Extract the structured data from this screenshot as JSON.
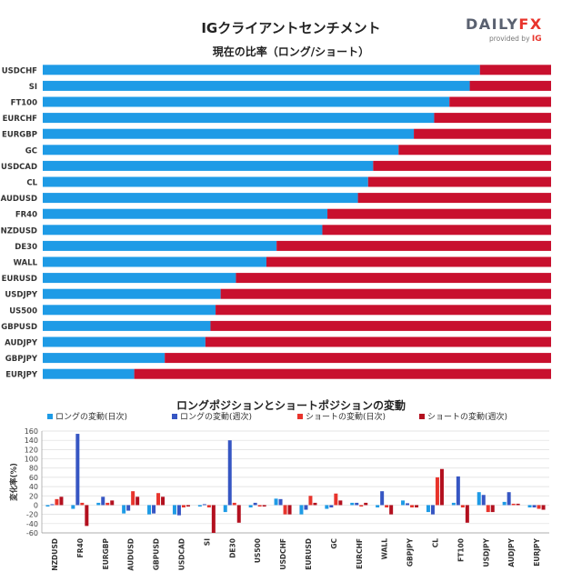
{
  "header": {
    "title": "IGクライアントセンチメント",
    "logo_brand_a": "DAILY",
    "logo_brand_b": "FX",
    "logo_provided": "provided by",
    "logo_ig": "IG"
  },
  "colors": {
    "long": "#1e9be6",
    "short": "#c8102e",
    "long_daily": "#1e9be6",
    "long_weekly": "#3656c3",
    "short_daily": "#e8342c",
    "short_weekly": "#b3101f"
  },
  "chart_data": [
    {
      "type": "bar",
      "orientation": "horizontal",
      "stacked": true,
      "title": "現在の比率（ロング/ショート）",
      "categories": [
        "USDCHF",
        "SI",
        "FT100",
        "EURCHF",
        "EURGBP",
        "GC",
        "USDCAD",
        "CL",
        "AUDUSD",
        "FR40",
        "NZDUSD",
        "DE30",
        "WALL",
        "EURUSD",
        "USDJPY",
        "US500",
        "GBPUSD",
        "AUDJPY",
        "GBPJPY",
        "EURJPY"
      ],
      "series": [
        {
          "values": [
            86,
            84,
            80,
            77,
            73,
            70,
            65,
            64,
            62,
            56,
            55,
            46,
            44,
            38,
            35,
            34,
            33,
            32,
            24,
            18
          ]
        },
        {
          "values": [
            14,
            16,
            20,
            23,
            27,
            30,
            35,
            36,
            38,
            44,
            45,
            54,
            56,
            62,
            65,
            66,
            67,
            68,
            76,
            82
          ]
        }
      ],
      "xlim": [
        0,
        100
      ]
    },
    {
      "type": "bar",
      "title": "ロングポジションとショートポジションの変動",
      "ylabel": "変化率(%)",
      "ylim": [
        -60,
        160
      ],
      "yticks": [
        "160",
        "140",
        "120",
        "100",
        "80",
        "60",
        "40",
        "20",
        "0",
        "-20",
        "-40",
        "-60"
      ],
      "legend_position": "top",
      "categories": [
        "NZDUSD",
        "FR40",
        "EURGBP",
        "AUDUSD",
        "GBPUSD",
        "USDCAD",
        "SI",
        "DE30",
        "US500",
        "USDCHF",
        "EURUSD",
        "GC",
        "EURCHF",
        "WALL",
        "GBPJPY",
        "CL",
        "FT100",
        "USDJPY",
        "AUDJPY",
        "EURJPY"
      ],
      "series": [
        {
          "name": "ロングの変動(日次)",
          "values": [
            -3,
            -8,
            5,
            -18,
            -20,
            -20,
            -3,
            -15,
            -5,
            14,
            -20,
            -8,
            5,
            -5,
            10,
            -15,
            5,
            28,
            7,
            -5
          ]
        },
        {
          "name": "ロングの変動(週次)",
          "values": [
            2,
            154,
            18,
            -12,
            -18,
            -22,
            2,
            140,
            5,
            13,
            -10,
            -5,
            5,
            30,
            4,
            -20,
            62,
            22,
            28,
            -5
          ]
        },
        {
          "name": "ショートの変動(日次)",
          "values": [
            13,
            5,
            5,
            30,
            26,
            -5,
            -5,
            5,
            -3,
            -20,
            20,
            25,
            -3,
            -5,
            -5,
            60,
            -5,
            -15,
            3,
            -8
          ]
        },
        {
          "name": "ショートの変動(週次)",
          "values": [
            18,
            -45,
            10,
            18,
            18,
            -3,
            -60,
            -38,
            -3,
            -20,
            5,
            10,
            5,
            -20,
            -5,
            78,
            -38,
            -15,
            3,
            -10
          ]
        }
      ]
    }
  ]
}
